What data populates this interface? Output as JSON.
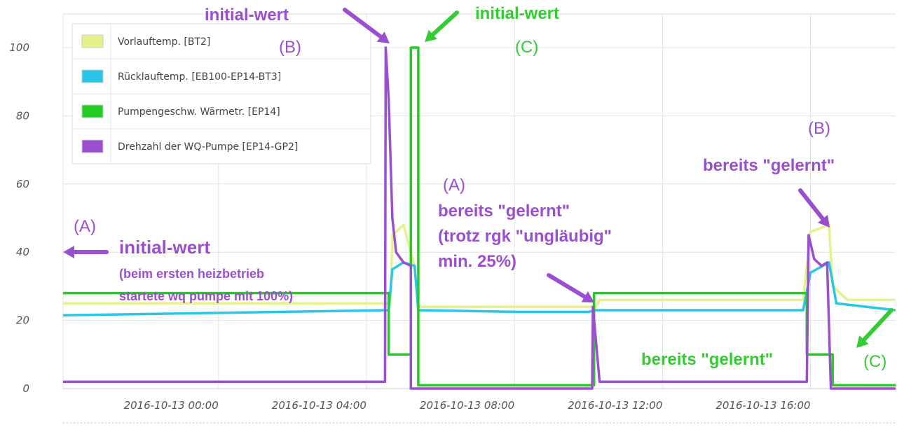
{
  "chart_data": {
    "type": "line",
    "ylim": [
      0,
      100
    ],
    "y_ticks": [
      "0",
      "20",
      "40",
      "60",
      "80",
      "100"
    ],
    "x_tick_labels": [
      "2016-10-13 00:00",
      "2016-10-13 04:00",
      "2016-10-13 08:00",
      "2016-10-13 12:00",
      "2016-10-13 16:00"
    ],
    "x_range_hours": [
      -4.2,
      18.3
    ],
    "grid": true,
    "legend_position": "top-left",
    "series": [
      {
        "name": "Vorlauftemp. [BT2]",
        "color": "#e6f08c",
        "points": [
          [
            -4.2,
            25
          ],
          [
            4.65,
            25
          ],
          [
            4.7,
            45
          ],
          [
            5.0,
            48
          ],
          [
            5.3,
            36
          ],
          [
            5.4,
            24
          ],
          [
            10.0,
            24
          ],
          [
            10.2,
            24
          ],
          [
            10.3,
            26
          ],
          [
            15.8,
            26
          ],
          [
            16.0,
            46
          ],
          [
            16.5,
            48
          ],
          [
            16.6,
            30
          ],
          [
            17.0,
            26
          ],
          [
            18.3,
            26
          ]
        ]
      },
      {
        "name": "Rücklauftemp. [EB100-EP14-BT3]",
        "color": "#29c6e8",
        "points": [
          [
            -4.2,
            21.5
          ],
          [
            4.6,
            23
          ],
          [
            4.7,
            35
          ],
          [
            5.0,
            37
          ],
          [
            5.3,
            36
          ],
          [
            5.4,
            23
          ],
          [
            8.0,
            22.5
          ],
          [
            10.0,
            22.5
          ],
          [
            10.2,
            23
          ],
          [
            15.8,
            23
          ],
          [
            16.0,
            34
          ],
          [
            16.5,
            37
          ],
          [
            16.7,
            25
          ],
          [
            18.3,
            23
          ]
        ]
      },
      {
        "name": "Pumpengeschw. Wärmetr. [EP14]",
        "color": "#22cc22",
        "points": [
          [
            -4.2,
            28
          ],
          [
            4.6,
            28
          ],
          [
            4.6,
            10
          ],
          [
            5.2,
            10
          ],
          [
            5.2,
            100
          ],
          [
            5.4,
            100
          ],
          [
            5.4,
            1
          ],
          [
            10.15,
            1
          ],
          [
            10.15,
            28
          ],
          [
            15.9,
            28
          ],
          [
            15.9,
            10
          ],
          [
            16.6,
            10
          ],
          [
            16.6,
            1
          ],
          [
            18.3,
            1
          ]
        ]
      },
      {
        "name": "Drehzahl der WQ-Pumpe [EP14-GP2]",
        "color": "#9a4fd0",
        "points": [
          [
            -4.2,
            2
          ],
          [
            4.5,
            2
          ],
          [
            4.52,
            100
          ],
          [
            4.6,
            85
          ],
          [
            4.7,
            50
          ],
          [
            4.8,
            40
          ],
          [
            5.0,
            37
          ],
          [
            5.2,
            36
          ],
          [
            5.2,
            0
          ],
          [
            10.1,
            0
          ],
          [
            10.12,
            24
          ],
          [
            10.3,
            2
          ],
          [
            15.9,
            2
          ],
          [
            15.95,
            45
          ],
          [
            16.1,
            38
          ],
          [
            16.3,
            36
          ],
          [
            16.45,
            37
          ],
          [
            16.55,
            0
          ],
          [
            18.3,
            0
          ]
        ]
      }
    ],
    "annotations": [
      {
        "text": "initial-wert",
        "color": "#9a4fd0"
      },
      {
        "text": "(B)",
        "color": "#9a4fd0"
      },
      {
        "text": "initial-wert",
        "color": "#33cc33"
      },
      {
        "text": "(C)",
        "color": "#33cc33"
      },
      {
        "text": "(A)",
        "color": "#9a4fd0"
      },
      {
        "text": "initial-wert",
        "color": "#9a4fd0"
      },
      {
        "text": "(beim ersten heizbetrieb",
        "color": "#9a4fd0"
      },
      {
        "text": "startete wq pumpe mit 100%)",
        "color": "#9a4fd0"
      },
      {
        "text": "(A)",
        "color": "#9a4fd0"
      },
      {
        "text": "bereits \"gelernt\"",
        "color": "#9a4fd0"
      },
      {
        "text": "(trotz rgk \"ungläubig\"",
        "color": "#9a4fd0"
      },
      {
        "text": "min. 25%)",
        "color": "#9a4fd0"
      },
      {
        "text": "(B)",
        "color": "#9a4fd0"
      },
      {
        "text": "bereits \"gelernt\"",
        "color": "#9a4fd0"
      },
      {
        "text": "bereits \"gelernt\"",
        "color": "#33cc33"
      },
      {
        "text": "(C)",
        "color": "#33cc33"
      }
    ]
  }
}
